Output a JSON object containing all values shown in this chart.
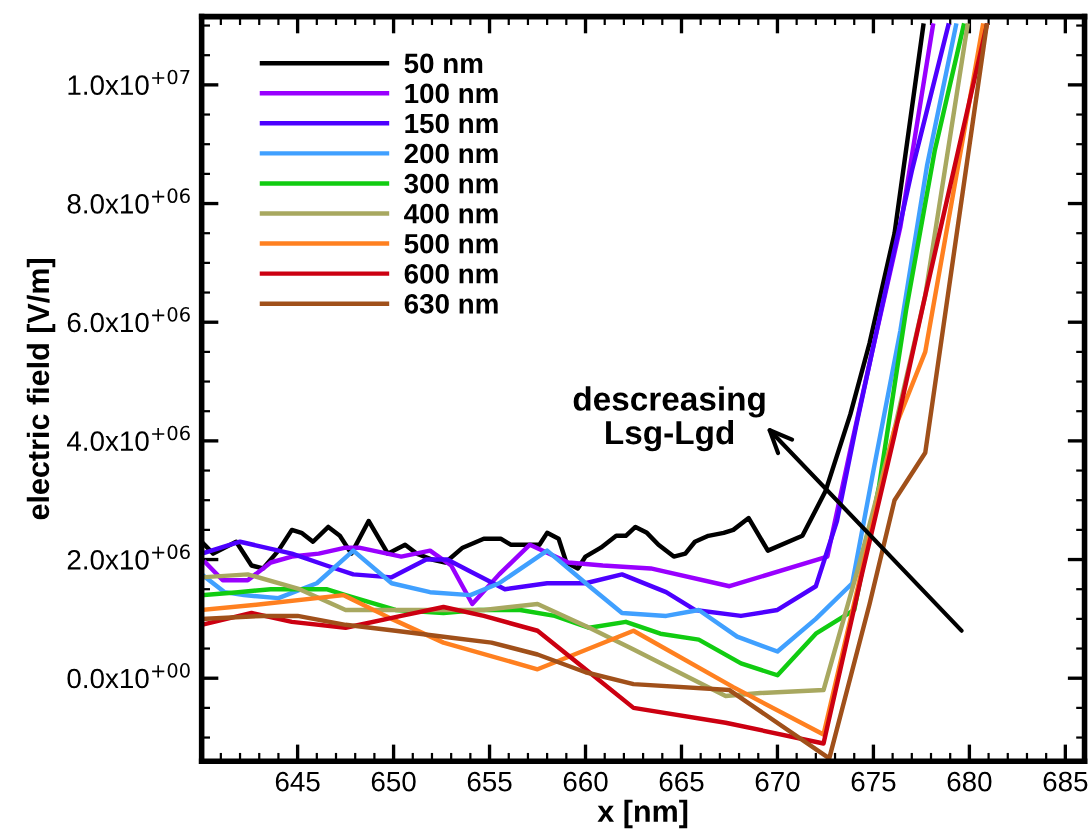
{
  "chart_data": {
    "type": "line",
    "xlabel": "x [nm]",
    "ylabel": "electric field [V/m]",
    "xlim": [
      640,
      686
    ],
    "xticks": [
      645,
      650,
      655,
      660,
      665,
      670,
      675,
      680,
      685
    ],
    "ylim": [
      -1400000,
      11150000
    ],
    "yticks": [
      {
        "value": 0,
        "label": "0.0x10$^{+00}$"
      },
      {
        "value": 2000000,
        "label": "2.0x10$^{+06}$"
      },
      {
        "value": 4000000,
        "label": "4.0x10$^{+06}$"
      },
      {
        "value": 6000000,
        "label": "6.0x10$^{+06}$"
      },
      {
        "value": 8000000,
        "label": "8.0x10$^{+06}$"
      },
      {
        "value": 10000000,
        "label": "1.0x10$^{+07}$"
      }
    ],
    "legend": "top left",
    "grid": false,
    "marker": "none",
    "line_style": "solid",
    "annotations": [
      "descreasing\nLsg-Lgd"
    ],
    "series": [
      {
        "name": "50 nm",
        "color": "#000000",
        "x": [
          640.0,
          640.6,
          641.8,
          642.6,
          643.2,
          644.0,
          644.7,
          645.2,
          645.8,
          646.6,
          647.2,
          647.8,
          648.7,
          649.7,
          650.6,
          651.2,
          652.0,
          652.7,
          653.6,
          654.7,
          655.6,
          656.1,
          657.6,
          658.0,
          658.6,
          659.0,
          659.6,
          660.0,
          660.8,
          661.6,
          662.1,
          662.6,
          663.2,
          663.8,
          664.6,
          665.2,
          665.7,
          666.4,
          667.2,
          667.7,
          668.5,
          669.5,
          671.3,
          672.5,
          673.8,
          674.8,
          676.1,
          677.6
        ],
        "values": [
          2300000,
          2100000,
          2300000,
          1900000,
          1850000,
          2150000,
          2500000,
          2450000,
          2300000,
          2550000,
          2400000,
          2100000,
          2650000,
          2100000,
          2250000,
          2100000,
          2000000,
          1950000,
          2200000,
          2350000,
          2350000,
          2250000,
          2250000,
          2450000,
          2350000,
          1950000,
          1850000,
          2050000,
          2200000,
          2400000,
          2400000,
          2550000,
          2450000,
          2250000,
          2050000,
          2100000,
          2300000,
          2400000,
          2450000,
          2500000,
          2700000,
          2150000,
          2400000,
          3150000,
          4450000,
          5650000,
          7500000,
          11000000
        ]
      },
      {
        "name": "100 nm",
        "color": "#9900ff",
        "x": [
          640.2,
          641.1,
          642.4,
          643.6,
          644.7,
          646.1,
          647.5,
          648.2,
          650.4,
          651.9,
          653.0,
          654.1,
          655.5,
          657.1,
          659.1,
          660.9,
          663.4,
          667.5,
          672.6,
          673.8,
          675.0,
          676.4,
          678.1
        ],
        "values": [
          1950000,
          1650000,
          1650000,
          1950000,
          2050000,
          2100000,
          2200000,
          2200000,
          2050000,
          2150000,
          1900000,
          1250000,
          1750000,
          2250000,
          1950000,
          1900000,
          1850000,
          1550000,
          2050000,
          3850000,
          5600000,
          7600000,
          11000000
        ]
      },
      {
        "name": "150 nm",
        "color": "#4d00ff",
        "x": [
          640.0,
          642.0,
          644.7,
          646.5,
          647.9,
          649.9,
          651.7,
          652.8,
          654.0,
          655.8,
          658.0,
          660.0,
          661.9,
          664.2,
          665.7,
          668.1,
          670.0,
          672.0,
          673.1,
          674.1,
          675.4,
          677.0,
          678.9
        ],
        "values": [
          2100000,
          2300000,
          2100000,
          1900000,
          1750000,
          1700000,
          2000000,
          2000000,
          1800000,
          1500000,
          1600000,
          1600000,
          1750000,
          1450000,
          1150000,
          1050000,
          1150000,
          1550000,
          2650000,
          4250000,
          6200000,
          8550000,
          11000000
        ]
      },
      {
        "name": "200 nm",
        "color": "#40a0ff",
        "x": [
          640.0,
          641.2,
          642.2,
          644.0,
          646.0,
          647.9,
          649.9,
          651.9,
          654.0,
          655.5,
          658.0,
          660.2,
          661.9,
          664.2,
          665.9,
          667.9,
          670.0,
          672.0,
          673.9,
          675.0,
          676.4,
          677.8,
          679.3
        ],
        "values": [
          1750000,
          1450000,
          1400000,
          1350000,
          1600000,
          2150000,
          1600000,
          1450000,
          1400000,
          1600000,
          2150000,
          1550000,
          1100000,
          1050000,
          1150000,
          700000,
          450000,
          1000000,
          1600000,
          3500000,
          5850000,
          8650000,
          11000000
        ]
      },
      {
        "name": "300 nm",
        "color": "#11cc11",
        "x": [
          640.0,
          641.9,
          643.6,
          646.5,
          647.5,
          650.1,
          652.6,
          654.4,
          656.6,
          658.4,
          660.2,
          662.1,
          663.9,
          665.9,
          668.1,
          670.0,
          672.0,
          674.0,
          675.3,
          676.7,
          678.2,
          679.7
        ],
        "values": [
          1400000,
          1450000,
          1500000,
          1500000,
          1400000,
          1150000,
          1100000,
          1150000,
          1150000,
          1050000,
          850000,
          950000,
          750000,
          650000,
          250000,
          50000,
          750000,
          1150000,
          3250000,
          6200000,
          8900000,
          11000000
        ]
      },
      {
        "name": "400 nm",
        "color": "#a8a860",
        "x": [
          640.0,
          642.4,
          645.1,
          647.5,
          649.7,
          651.9,
          654.7,
          657.5,
          660.2,
          662.4,
          667.3,
          669.1,
          672.4,
          674.2,
          676.1,
          677.7,
          679.9
        ],
        "values": [
          1700000,
          1750000,
          1500000,
          1150000,
          1150000,
          1150000,
          1150000,
          1250000,
          850000,
          500000,
          -300000,
          -250000,
          -200000,
          1850000,
          4200000,
          6450000,
          11000000
        ]
      },
      {
        "name": "500 nm",
        "color": "#ff8020",
        "x": [
          640.0,
          643.2,
          647.4,
          649.9,
          652.6,
          657.5,
          662.5,
          667.7,
          672.4,
          674.6,
          676.1,
          677.7,
          680.7
        ],
        "values": [
          1150000,
          1250000,
          1400000,
          1000000,
          600000,
          150000,
          800000,
          -150000,
          -950000,
          2100000,
          4200000,
          5500000,
          11000000
        ]
      },
      {
        "name": "600 nm",
        "color": "#cc0011",
        "x": [
          640.0,
          642.6,
          644.7,
          647.5,
          650.4,
          652.6,
          654.7,
          657.5,
          660.0,
          662.5,
          667.3,
          672.4,
          674.4,
          676.1,
          677.7,
          680.9
        ],
        "values": [
          900000,
          1100000,
          950000,
          850000,
          1050000,
          1200000,
          1050000,
          800000,
          150000,
          -500000,
          -750000,
          -1100000,
          1750000,
          4100000,
          6450000,
          11000000
        ]
      },
      {
        "name": "630 nm",
        "color": "#a0501a",
        "x": [
          640.0,
          643.2,
          645.0,
          647.5,
          650.1,
          652.6,
          655.1,
          657.5,
          660.0,
          662.5,
          667.5,
          672.7,
          674.8,
          676.1,
          677.7,
          680.9
        ],
        "values": [
          1000000,
          1050000,
          1050000,
          900000,
          800000,
          700000,
          600000,
          400000,
          100000,
          -100000,
          -200000,
          -1350000,
          1250000,
          3000000,
          3800000,
          11000000
        ]
      }
    ]
  }
}
